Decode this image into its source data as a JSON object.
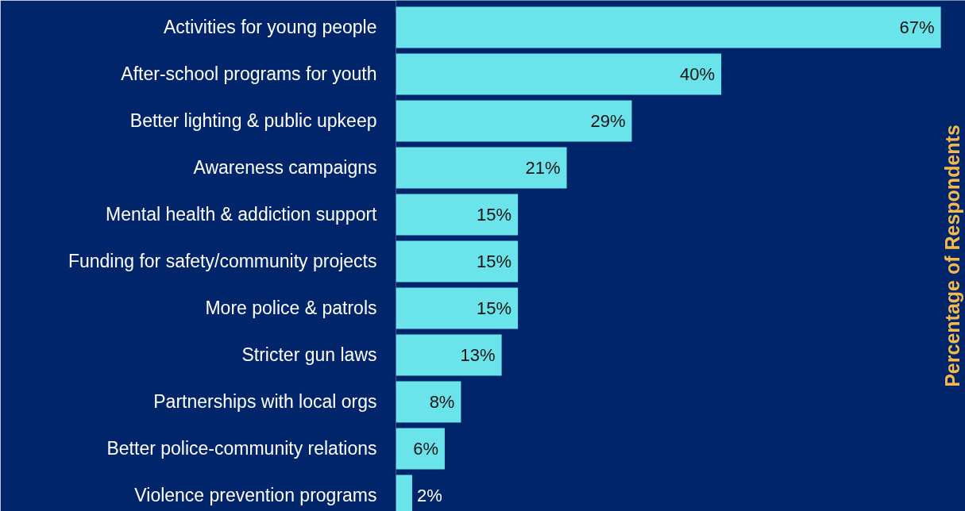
{
  "chart_data": {
    "type": "bar",
    "orientation": "horizontal",
    "ylabel": "Percentage of Respondents",
    "categories": [
      "Activities for young people",
      "After-school programs for youth",
      "Better lighting & public upkeep",
      "Awareness campaigns",
      "Mental health & addiction support",
      "Funding for safety/community projects",
      "More police & patrols",
      "Stricter gun laws",
      "Partnerships with local orgs",
      "Better police-community relations",
      "Violence prevention programs"
    ],
    "values": [
      67,
      40,
      29,
      21,
      15,
      15,
      15,
      13,
      8,
      6,
      2
    ],
    "value_labels": [
      "67%",
      "40%",
      "29%",
      "21%",
      "15%",
      "15%",
      "15%",
      "13%",
      "8%",
      "6%",
      "2%"
    ],
    "color": "#6ae4ea",
    "grid": false
  }
}
